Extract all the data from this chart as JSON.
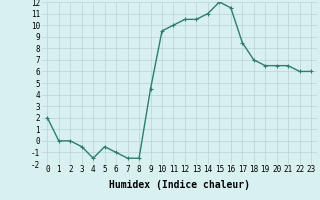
{
  "xlabel": "Humidex (Indice chaleur)",
  "x": [
    0,
    1,
    2,
    3,
    4,
    5,
    6,
    7,
    8,
    9,
    10,
    11,
    12,
    13,
    14,
    15,
    16,
    17,
    18,
    19,
    20,
    21,
    22,
    23
  ],
  "y": [
    2,
    0,
    0,
    -0.5,
    -1.5,
    -0.5,
    -1,
    -1.5,
    -1.5,
    4.5,
    9.5,
    10,
    10.5,
    10.5,
    11,
    12,
    11.5,
    8.5,
    7,
    6.5,
    6.5,
    6.5,
    6,
    6
  ],
  "line_color": "#2e7d6e",
  "marker": "+",
  "marker_size": 3,
  "bg_color": "#d8f0f0",
  "grid_color": "#b8d4d4",
  "ylim": [
    -2,
    12
  ],
  "yticks": [
    -2,
    -1,
    0,
    1,
    2,
    3,
    4,
    5,
    6,
    7,
    8,
    9,
    10,
    11,
    12
  ],
  "xticks": [
    0,
    1,
    2,
    3,
    4,
    5,
    6,
    7,
    8,
    9,
    10,
    11,
    12,
    13,
    14,
    15,
    16,
    17,
    18,
    19,
    20,
    21,
    22,
    23
  ],
  "xlabel_fontsize": 7,
  "tick_fontsize": 5.5,
  "linewidth": 1.0
}
